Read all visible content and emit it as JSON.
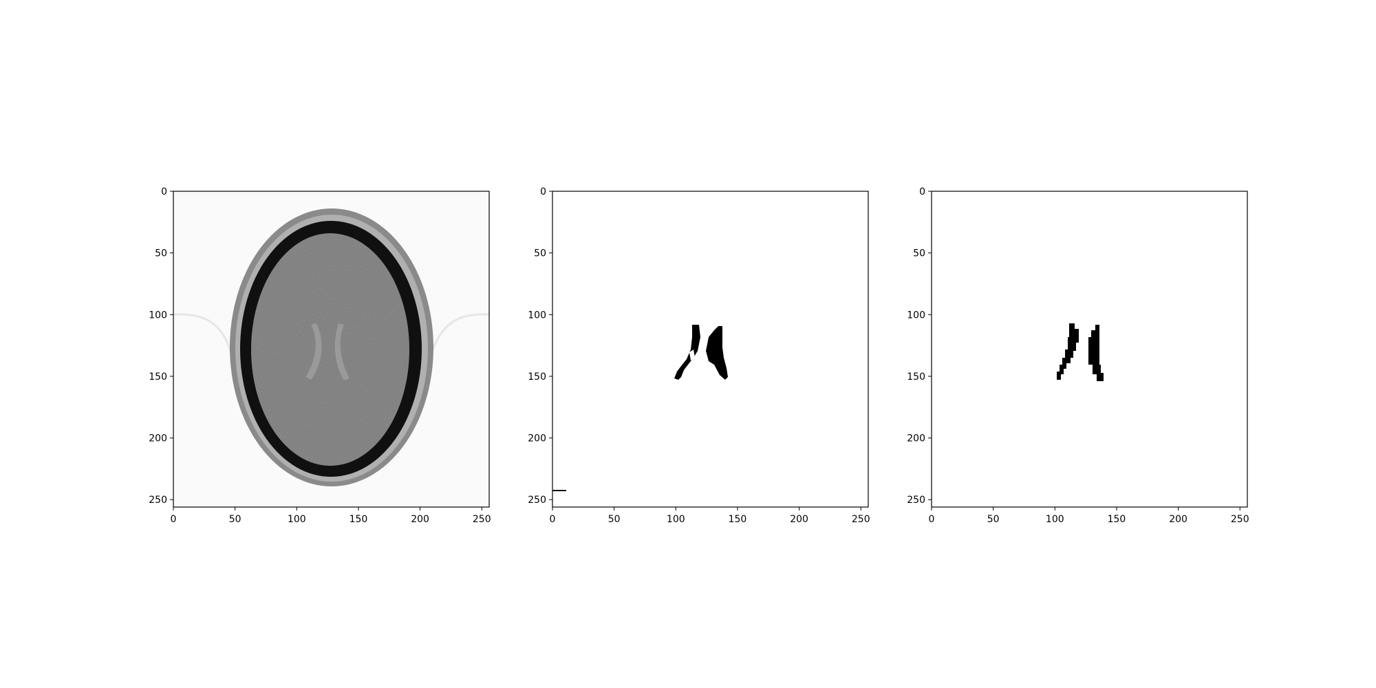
{
  "figure": {
    "background": "#ffffff",
    "panels": [
      {
        "name": "ct-slice",
        "content": "grayscale axial head CT slice",
        "xticks": [
          "0",
          "50",
          "100",
          "150",
          "200",
          "250"
        ],
        "yticks": [
          "0",
          "50",
          "100",
          "150",
          "200",
          "250"
        ]
      },
      {
        "name": "predicted-mask",
        "content": "binary segmentation mask (ventricles, black on white)",
        "xticks": [
          "0",
          "50",
          "100",
          "150",
          "200",
          "250"
        ],
        "yticks": [
          "0",
          "50",
          "100",
          "150",
          "200",
          "250"
        ]
      },
      {
        "name": "ground-truth-mask",
        "content": "binary segmentation mask (ventricles, black on white)",
        "xticks": [
          "0",
          "50",
          "100",
          "150",
          "200",
          "250"
        ],
        "yticks": [
          "0",
          "50",
          "100",
          "150",
          "200",
          "250"
        ]
      }
    ]
  }
}
